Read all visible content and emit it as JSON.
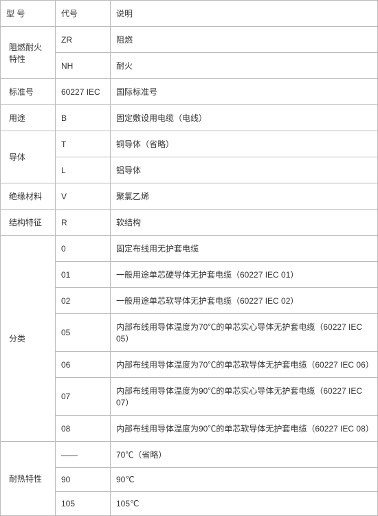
{
  "header": {
    "col1": "型 号",
    "col2": "代号",
    "col3": "说明"
  },
  "rows": [
    {
      "cat": "阻燃耐火特性",
      "items": [
        {
          "code": "ZR",
          "desc": "阻燃"
        },
        {
          "code": "NH",
          "desc": "耐火"
        }
      ]
    },
    {
      "cat": "标准号",
      "items": [
        {
          "code": "60227 IEC",
          "desc": "国际标准号"
        }
      ]
    },
    {
      "cat": "用途",
      "items": [
        {
          "code": "B",
          "desc": "固定敷设用电缆（电线）"
        }
      ]
    },
    {
      "cat": "导体",
      "items": [
        {
          "code": "T",
          "desc": "铜导体（省略）"
        },
        {
          "code": "L",
          "desc": "铝导体"
        }
      ]
    },
    {
      "cat": "绝缘材料",
      "items": [
        {
          "code": "V",
          "desc": "聚氯乙烯"
        }
      ]
    },
    {
      "cat": "结构特征",
      "items": [
        {
          "code": "R",
          "desc": "软结构"
        }
      ]
    },
    {
      "cat": "分类",
      "items": [
        {
          "code": "0",
          "desc": "固定布线用无护套电缆"
        },
        {
          "code": "01",
          "desc": "一般用途单芯硬导体无护套电缆（60227 IEC 01）"
        },
        {
          "code": "02",
          "desc": "一般用途单芯软导体无护套电缆（60227 IEC 02）"
        },
        {
          "code": "05",
          "desc": "内部布线用导体温度为70℃的单芯实心导体无护套电缆（60227 IEC 05）"
        },
        {
          "code": "06",
          "desc": "内部布线用导体温度为70℃的单芯软导体无护套电缆（60227 IEC 06）"
        },
        {
          "code": "07",
          "desc": "内部布线用导体温度为90℃的单芯实心导体无护套电缆（60227 IEC 07）"
        },
        {
          "code": "08",
          "desc": "内部布线用导体温度为90℃的单芯软导体无护套电缆（60227 IEC 08）"
        }
      ]
    },
    {
      "cat": "耐热特性",
      "items": [
        {
          "code": "——",
          "desc": "70℃（省略）"
        },
        {
          "code": "90",
          "desc": "90℃"
        },
        {
          "code": "105",
          "desc": "105℃"
        }
      ]
    }
  ]
}
